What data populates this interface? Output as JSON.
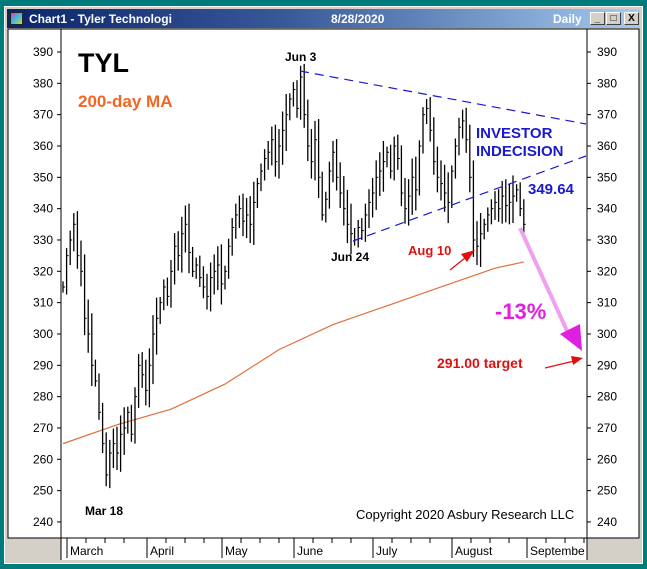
{
  "window": {
    "title": "Chart1 - Tyler Technologi",
    "date": "8/28/2020",
    "period": "Daily",
    "buttons": {
      "minimize": "_",
      "maximize": "□",
      "close": "X"
    }
  },
  "chart_data": {
    "type": "ohlc",
    "symbol": "TYL",
    "ylim": [
      235,
      395
    ],
    "yticks": [
      390,
      380,
      370,
      360,
      350,
      340,
      330,
      320,
      310,
      300,
      290,
      280,
      270,
      260,
      250,
      240
    ],
    "months": [
      "March",
      "April",
      "May",
      "June",
      "July",
      "August",
      "Septembe"
    ],
    "start_date": "2020-03-02",
    "end_date": "2020-08-28",
    "closes": [
      315,
      325,
      330,
      335,
      325,
      320,
      305,
      300,
      290,
      285,
      275,
      265,
      255,
      262,
      265,
      262,
      268,
      270,
      275,
      268,
      280,
      290,
      287,
      282,
      290,
      300,
      305,
      310,
      315,
      312,
      320,
      328,
      325,
      332,
      335,
      326,
      320,
      322,
      318,
      315,
      312,
      318,
      320,
      322,
      316,
      320,
      328,
      334,
      338,
      340,
      336,
      338,
      335,
      342,
      348,
      352,
      356,
      358,
      362,
      355,
      360,
      365,
      370,
      375,
      378,
      372,
      382,
      370,
      360,
      355,
      362,
      350,
      338,
      343,
      352,
      358,
      350,
      345,
      340,
      335,
      332,
      330,
      334,
      333,
      338,
      342,
      345,
      350,
      352,
      355,
      358,
      352,
      360,
      356,
      345,
      340,
      344,
      350,
      346,
      360,
      370,
      372,
      365,
      355,
      350,
      348,
      345,
      342,
      352,
      360,
      366,
      368,
      362,
      350,
      330,
      328,
      332,
      335,
      338,
      340,
      342,
      340,
      344,
      341,
      342,
      344,
      346,
      340,
      335
    ],
    "moving_average": {
      "name": "200-day MA",
      "color": "#e0703a",
      "points": [
        [
          0,
          265
        ],
        [
          15,
          271
        ],
        [
          30,
          276
        ],
        [
          45,
          284
        ],
        [
          60,
          295
        ],
        [
          75,
          303
        ],
        [
          90,
          309
        ],
        [
          105,
          315
        ],
        [
          120,
          321
        ],
        [
          128,
          323
        ]
      ]
    },
    "trendlines": {
      "upper": [
        [
          384,
          "Jun 3"
        ],
        [
          367,
          "Aug 28+"
        ]
      ],
      "lower": [
        [
          329,
          "Jun 24"
        ],
        [
          356,
          "Aug 28+"
        ]
      ]
    },
    "annotations": {
      "symbol": "TYL",
      "ma_label": "200-day MA",
      "jun3": "Jun 3",
      "jun24": "Jun 24",
      "mar18": "Mar 18",
      "aug10": "Aug 10",
      "indecision_1": "INVESTOR",
      "indecision_2": "INDECISION",
      "breakdown_level": "349.64",
      "projection": "-13%",
      "target": "291.00 target",
      "copyright": "Copyright 2020 Asbury Research LLC"
    },
    "colors": {
      "bars": "#000000",
      "trendline": "#1a1acc",
      "ma": "#e0703a",
      "red": "#e01010",
      "projection": "#f0a0f0",
      "pct": "#e020e0"
    }
  }
}
